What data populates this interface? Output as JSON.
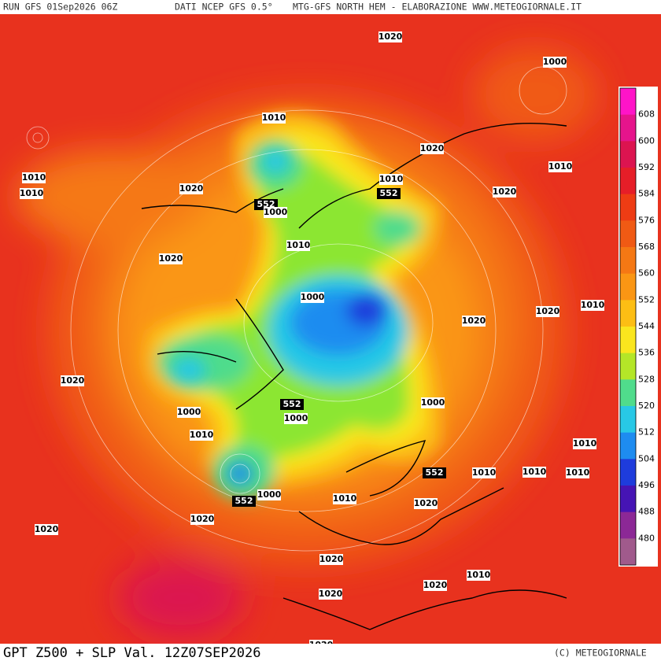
{
  "header": {
    "run": "RUN GFS 01Sep2026 06Z",
    "source": "DATI NCEP GFS 0.5°",
    "product": "MTG-GFS NORTH HEM - ELABORAZIONE WWW.METEOGIORNALE.IT"
  },
  "footer": {
    "title": "GPT Z500 + SLP Val. 12Z07SEP2026",
    "credit": "(C) METEOGIORNALE"
  },
  "legend": {
    "levels": [
      608,
      600,
      592,
      584,
      576,
      568,
      560,
      552,
      544,
      536,
      528,
      520,
      512,
      504,
      496,
      488,
      480
    ],
    "colors": [
      "#ff14c8",
      "#e6148c",
      "#dc1450",
      "#e61e28",
      "#ee3c14",
      "#f05a14",
      "#f57814",
      "#fa9614",
      "#fcbe14",
      "#fae61e",
      "#b4e628",
      "#50dc8c",
      "#28c8e6",
      "#1e8cf0",
      "#1e3cdc",
      "#4614b4",
      "#8c2896",
      "#a05a8c"
    ]
  },
  "contour_labels": [
    "1020",
    "1000",
    "1010",
    "1020",
    "1010",
    "1010",
    "1010",
    "1020",
    "1010",
    "552",
    "552",
    "1000",
    "1020",
    "1010",
    "1020",
    "1000",
    "1010",
    "1020",
    "1020",
    "1020",
    "552",
    "1000",
    "1000",
    "1000",
    "1010",
    "1010",
    "552",
    "1010",
    "1010",
    "1010",
    "552",
    "1000",
    "1010",
    "1020",
    "1020",
    "1020",
    "1020",
    "1010",
    "1020",
    "1020",
    "1020"
  ]
}
